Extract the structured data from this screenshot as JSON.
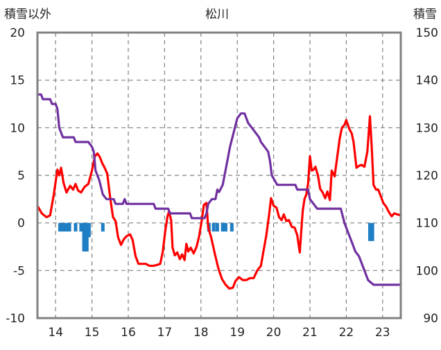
{
  "chart_data": {
    "type": "line",
    "title": "松川",
    "left_axis_label": "積雪以外",
    "right_axis_label": "積雪",
    "y_left": {
      "min": -10,
      "max": 20,
      "ticks": [
        -10,
        -5,
        0,
        5,
        10,
        15,
        20
      ]
    },
    "y_right": {
      "min": 90,
      "max": 150,
      "ticks": [
        90,
        100,
        110,
        120,
        130,
        140,
        150
      ]
    },
    "x": {
      "min": 13.5,
      "max": 23.5,
      "ticks": [
        14,
        15,
        16,
        17,
        18,
        19,
        20,
        21,
        22,
        23
      ]
    },
    "grid": true,
    "colors": {
      "red": "#ff0000",
      "purple": "#7030a0",
      "blue": "#1f7ec4",
      "frame": "#808080",
      "grid": "#808080"
    },
    "series": [
      {
        "axis": "left",
        "color": "#ff0000",
        "points": [
          [
            13.5,
            1.8
          ],
          [
            13.62,
            1.0
          ],
          [
            13.75,
            0.6
          ],
          [
            13.85,
            0.8
          ],
          [
            13.95,
            3.0
          ],
          [
            14.05,
            5.6
          ],
          [
            14.1,
            5.0
          ],
          [
            14.15,
            5.8
          ],
          [
            14.22,
            4.2
          ],
          [
            14.3,
            3.2
          ],
          [
            14.4,
            3.9
          ],
          [
            14.48,
            3.5
          ],
          [
            14.55,
            4.1
          ],
          [
            14.62,
            3.4
          ],
          [
            14.7,
            3.2
          ],
          [
            14.8,
            3.8
          ],
          [
            14.9,
            4.1
          ],
          [
            15.0,
            5.5
          ],
          [
            15.08,
            7.0
          ],
          [
            15.15,
            7.3
          ],
          [
            15.22,
            6.9
          ],
          [
            15.28,
            6.3
          ],
          [
            15.35,
            5.8
          ],
          [
            15.42,
            5.2
          ],
          [
            15.5,
            2.7
          ],
          [
            15.58,
            0.6
          ],
          [
            15.65,
            0.2
          ],
          [
            15.72,
            -1.5
          ],
          [
            15.8,
            -2.3
          ],
          [
            15.88,
            -1.7
          ],
          [
            15.95,
            -1.4
          ],
          [
            16.05,
            -1.2
          ],
          [
            16.12,
            -1.8
          ],
          [
            16.2,
            -3.5
          ],
          [
            16.28,
            -4.3
          ],
          [
            16.38,
            -4.3
          ],
          [
            16.48,
            -4.3
          ],
          [
            16.58,
            -4.5
          ],
          [
            16.7,
            -4.5
          ],
          [
            16.8,
            -4.4
          ],
          [
            16.88,
            -4.3
          ],
          [
            16.95,
            -3.0
          ],
          [
            17.02,
            -0.8
          ],
          [
            17.08,
            0.7
          ],
          [
            17.12,
            1.2
          ],
          [
            17.18,
            0.3
          ],
          [
            17.22,
            -2.6
          ],
          [
            17.28,
            -3.4
          ],
          [
            17.35,
            -3.1
          ],
          [
            17.42,
            -3.8
          ],
          [
            17.48,
            -3.3
          ],
          [
            17.55,
            -3.9
          ],
          [
            17.6,
            -2.2
          ],
          [
            17.65,
            -3.0
          ],
          [
            17.72,
            -2.6
          ],
          [
            17.8,
            -3.2
          ],
          [
            17.88,
            -2.5
          ],
          [
            17.95,
            -1.4
          ],
          [
            18.02,
            0.2
          ],
          [
            18.08,
            1.9
          ],
          [
            18.15,
            2.1
          ],
          [
            18.2,
            -0.5
          ],
          [
            18.28,
            -1.5
          ],
          [
            18.38,
            -3.2
          ],
          [
            18.48,
            -4.8
          ],
          [
            18.58,
            -5.9
          ],
          [
            18.68,
            -6.5
          ],
          [
            18.78,
            -6.9
          ],
          [
            18.88,
            -6.8
          ],
          [
            18.95,
            -6.1
          ],
          [
            19.05,
            -5.7
          ],
          [
            19.15,
            -6.0
          ],
          [
            19.25,
            -6.0
          ],
          [
            19.35,
            -5.8
          ],
          [
            19.45,
            -5.8
          ],
          [
            19.55,
            -5.0
          ],
          [
            19.65,
            -4.5
          ],
          [
            19.72,
            -3.0
          ],
          [
            19.8,
            -1.3
          ],
          [
            19.88,
            1.0
          ],
          [
            19.93,
            2.6
          ],
          [
            20.0,
            1.8
          ],
          [
            20.08,
            1.6
          ],
          [
            20.15,
            0.6
          ],
          [
            20.22,
            0.3
          ],
          [
            20.28,
            0.9
          ],
          [
            20.35,
            0.2
          ],
          [
            20.42,
            0.3
          ],
          [
            20.5,
            -0.4
          ],
          [
            20.58,
            -0.5
          ],
          [
            20.65,
            -1.3
          ],
          [
            20.72,
            -3.1
          ],
          [
            20.8,
            1.2
          ],
          [
            20.85,
            2.5
          ],
          [
            20.9,
            3.0
          ],
          [
            20.95,
            4.2
          ],
          [
            21.0,
            7.0
          ],
          [
            21.05,
            5.5
          ],
          [
            21.1,
            5.6
          ],
          [
            21.15,
            5.9
          ],
          [
            21.22,
            5.0
          ],
          [
            21.28,
            3.6
          ],
          [
            21.35,
            3.2
          ],
          [
            21.42,
            2.6
          ],
          [
            21.48,
            3.3
          ],
          [
            21.55,
            2.4
          ],
          [
            21.6,
            5.5
          ],
          [
            21.68,
            4.9
          ],
          [
            21.75,
            6.9
          ],
          [
            21.82,
            8.9
          ],
          [
            21.88,
            10.0
          ],
          [
            21.95,
            10.3
          ],
          [
            22.0,
            10.8
          ],
          [
            22.08,
            9.9
          ],
          [
            22.15,
            9.4
          ],
          [
            22.2,
            8.5
          ],
          [
            22.28,
            5.8
          ],
          [
            22.35,
            6.0
          ],
          [
            22.42,
            6.1
          ],
          [
            22.5,
            5.9
          ],
          [
            22.58,
            7.5
          ],
          [
            22.65,
            11.2
          ],
          [
            22.7,
            8.0
          ],
          [
            22.75,
            4.0
          ],
          [
            22.82,
            3.5
          ],
          [
            22.88,
            3.5
          ],
          [
            22.95,
            2.8
          ],
          [
            23.02,
            2.1
          ],
          [
            23.1,
            1.7
          ],
          [
            23.18,
            1.1
          ],
          [
            23.25,
            0.7
          ],
          [
            23.32,
            1.0
          ],
          [
            23.4,
            0.9
          ],
          [
            23.5,
            0.8
          ]
        ]
      },
      {
        "axis": "right",
        "color": "#7030a0",
        "points": [
          [
            13.5,
            137
          ],
          [
            13.6,
            137
          ],
          [
            13.65,
            136
          ],
          [
            13.85,
            136
          ],
          [
            13.9,
            135
          ],
          [
            14.0,
            135
          ],
          [
            14.05,
            134
          ],
          [
            14.1,
            130
          ],
          [
            14.2,
            128
          ],
          [
            14.5,
            128
          ],
          [
            14.55,
            127
          ],
          [
            14.9,
            127
          ],
          [
            15.0,
            126
          ],
          [
            15.05,
            125
          ],
          [
            15.1,
            121
          ],
          [
            15.2,
            119
          ],
          [
            15.3,
            116
          ],
          [
            15.4,
            115
          ],
          [
            15.6,
            115
          ],
          [
            15.65,
            114
          ],
          [
            15.85,
            114
          ],
          [
            15.9,
            115
          ],
          [
            15.95,
            114
          ],
          [
            16.7,
            114
          ],
          [
            16.75,
            113
          ],
          [
            17.1,
            113
          ],
          [
            17.15,
            112
          ],
          [
            17.7,
            112
          ],
          [
            17.75,
            111
          ],
          [
            18.1,
            111
          ],
          [
            18.15,
            112
          ],
          [
            18.2,
            114
          ],
          [
            18.3,
            115
          ],
          [
            18.4,
            115
          ],
          [
            18.45,
            117
          ],
          [
            18.5,
            116.5
          ],
          [
            18.6,
            118
          ],
          [
            18.7,
            122
          ],
          [
            18.8,
            126
          ],
          [
            18.9,
            129
          ],
          [
            19.0,
            132
          ],
          [
            19.1,
            133
          ],
          [
            19.2,
            133
          ],
          [
            19.3,
            131
          ],
          [
            19.4,
            130
          ],
          [
            19.5,
            129
          ],
          [
            19.6,
            128
          ],
          [
            19.65,
            127
          ],
          [
            19.75,
            126
          ],
          [
            19.85,
            125
          ],
          [
            19.9,
            123
          ],
          [
            19.95,
            120
          ],
          [
            20.1,
            118
          ],
          [
            20.6,
            118
          ],
          [
            20.65,
            117
          ],
          [
            20.95,
            117
          ],
          [
            21.0,
            115
          ],
          [
            21.1,
            114
          ],
          [
            21.2,
            113
          ],
          [
            21.85,
            113
          ],
          [
            21.95,
            110
          ],
          [
            22.05,
            108
          ],
          [
            22.15,
            106
          ],
          [
            22.25,
            104
          ],
          [
            22.35,
            103
          ],
          [
            22.45,
            101
          ],
          [
            22.6,
            98
          ],
          [
            22.75,
            97
          ],
          [
            22.8,
            97
          ],
          [
            23.5,
            97
          ]
        ]
      },
      {
        "axis": "left",
        "color": "#1f7ec4",
        "type": "bar",
        "bars": [
          [
            14.12,
            -0.9
          ],
          [
            14.17,
            -0.9
          ],
          [
            14.22,
            -0.9
          ],
          [
            14.3,
            -0.9
          ],
          [
            14.38,
            -0.9
          ],
          [
            14.55,
            -0.9
          ],
          [
            14.7,
            -0.9
          ],
          [
            14.78,
            -3.0
          ],
          [
            14.86,
            -3.0
          ],
          [
            14.92,
            -1.5
          ],
          [
            15.3,
            -0.9
          ],
          [
            18.22,
            -0.9
          ],
          [
            18.35,
            -0.9
          ],
          [
            18.45,
            -0.9
          ],
          [
            18.6,
            -0.9
          ],
          [
            18.68,
            -0.9
          ],
          [
            18.85,
            -0.9
          ],
          [
            22.65,
            -1.9
          ],
          [
            22.72,
            -1.9
          ]
        ]
      }
    ]
  }
}
